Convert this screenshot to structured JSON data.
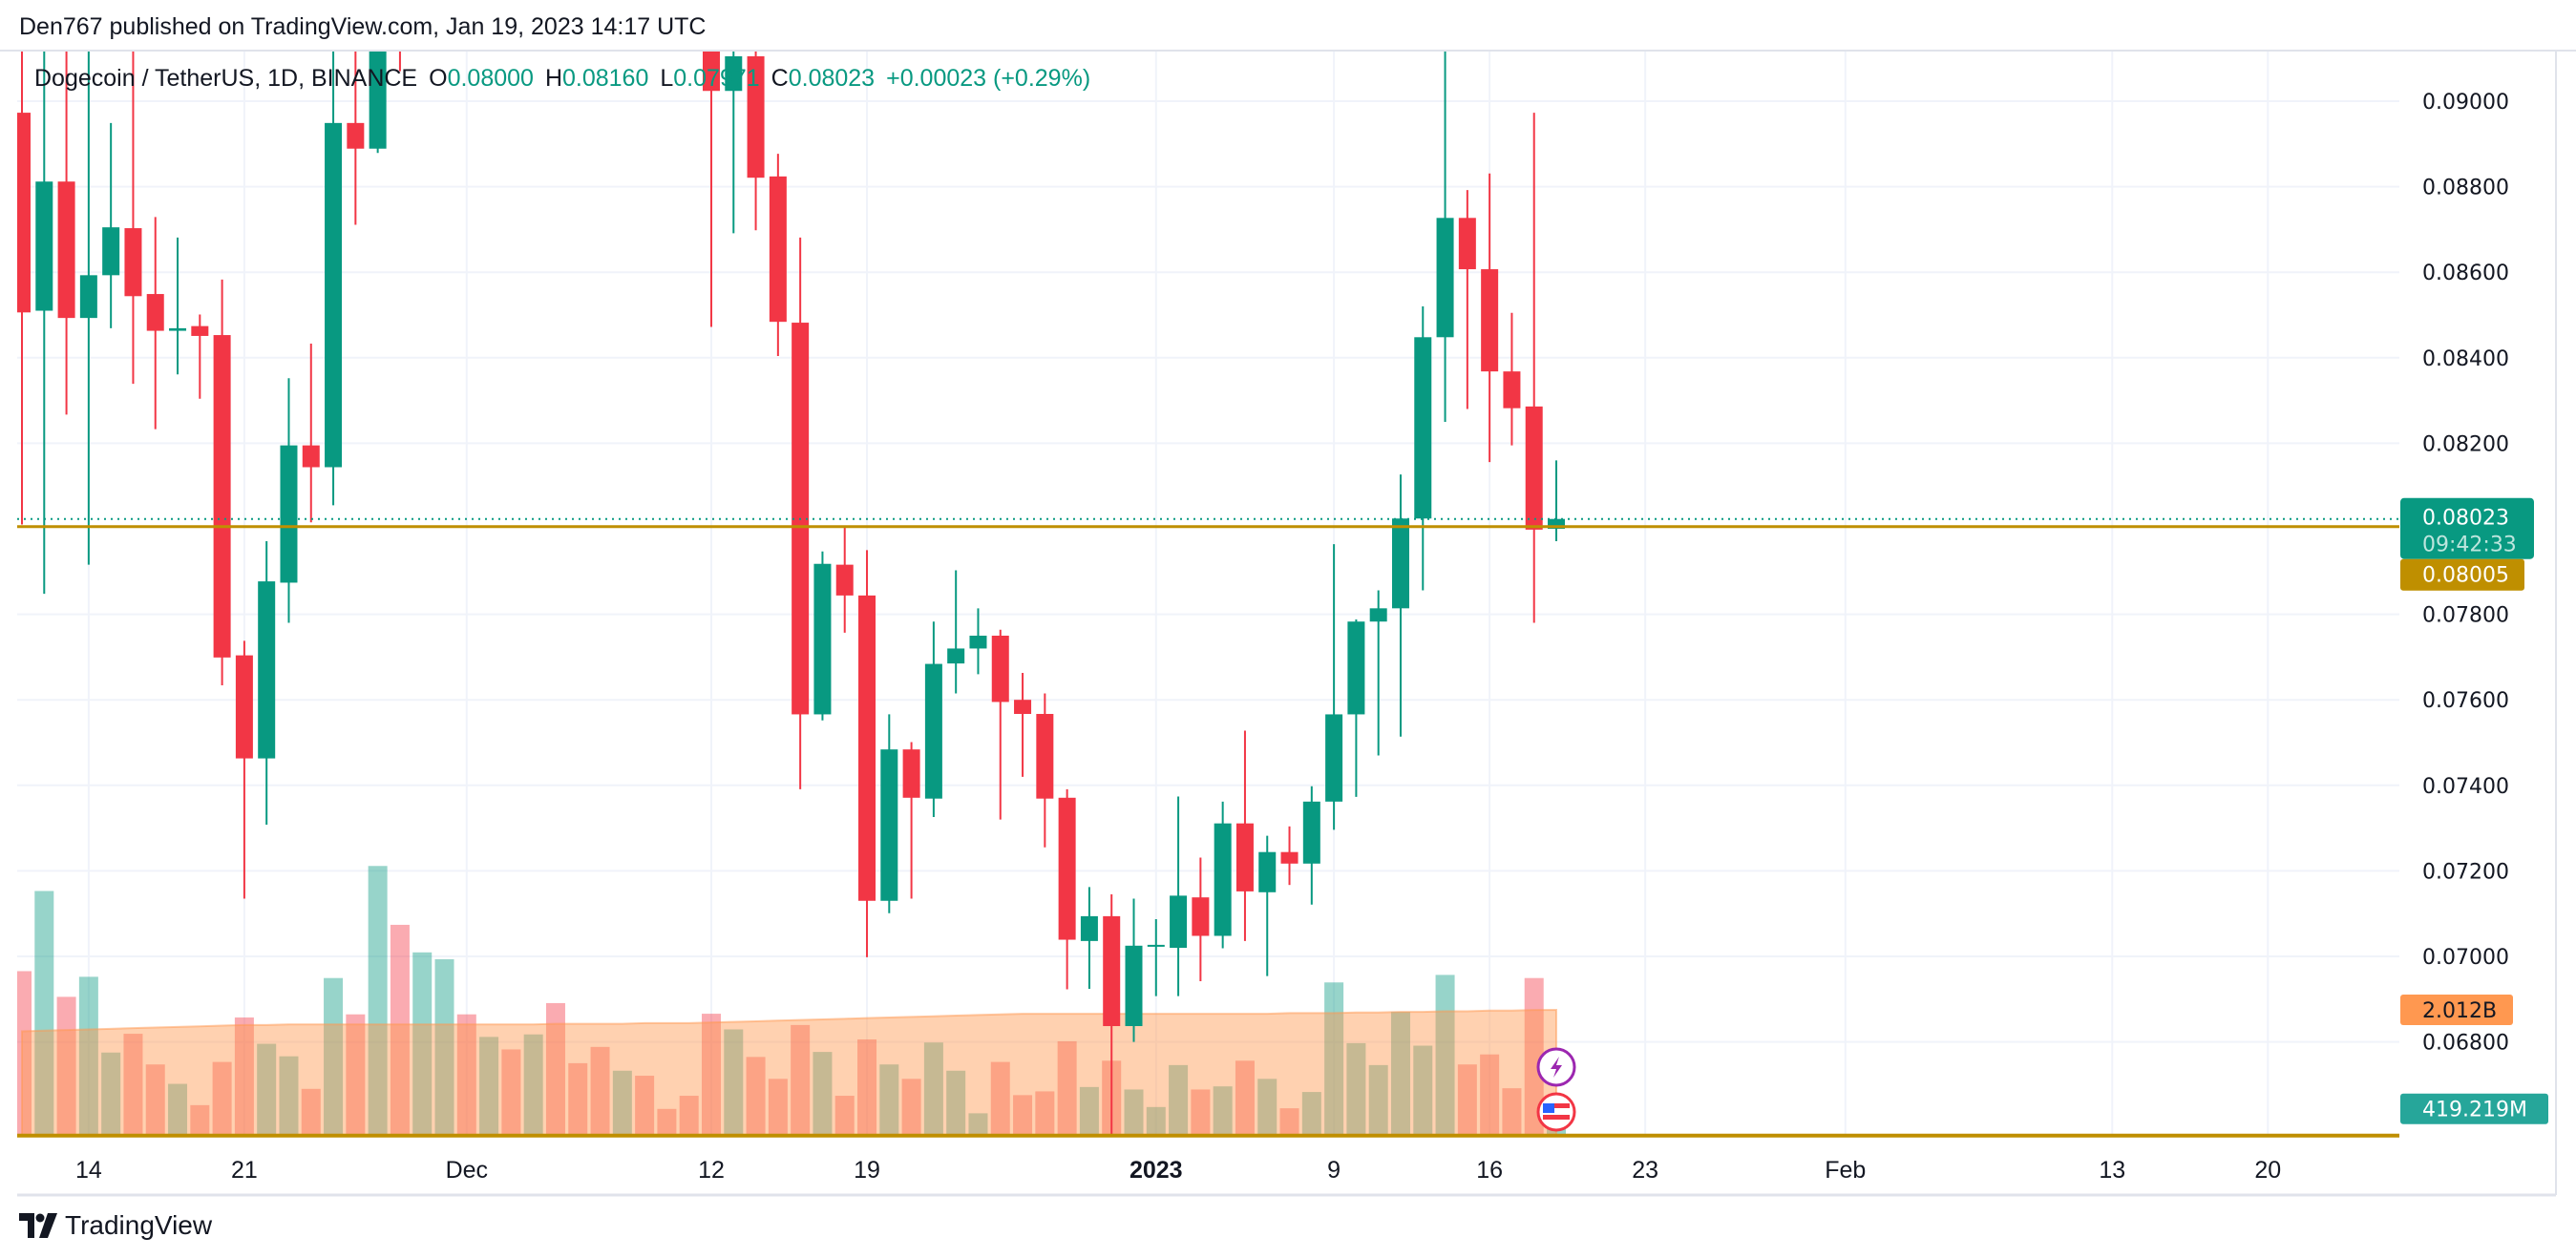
{
  "header": {
    "published": "Den767 published on TradingView.com, Jan 19, 2023 14:17 UTC"
  },
  "legend": {
    "symbol": "Dogecoin / TetherUS, 1D, BINANCE",
    "open_key": "O",
    "open": "0.08000",
    "high_key": "H",
    "high": "0.08160",
    "low_key": "L",
    "low": "0.07971",
    "close_key": "C",
    "close": "0.08023",
    "change": "+0.00023 (+0.29%)"
  },
  "price_axis": {
    "ticks": [
      "0.09000",
      "0.08800",
      "0.08600",
      "0.08400",
      "0.08200",
      "0.07800",
      "0.07600",
      "0.07400",
      "0.07200",
      "0.07000",
      "0.06800"
    ],
    "current_price": "0.08023",
    "countdown": "09:42:33",
    "line_price": "0.08005",
    "volume_ma_label": "2.012B",
    "volume_label": "419.219M",
    "bottom_line_price": "0.06581"
  },
  "time_axis": {
    "ticks": [
      {
        "label": "14",
        "date": "2022-11-14",
        "bold": false
      },
      {
        "label": "21",
        "date": "2022-11-21",
        "bold": false
      },
      {
        "label": "Dec",
        "date": "2022-12-01",
        "bold": false
      },
      {
        "label": "12",
        "date": "2022-12-12",
        "bold": false
      },
      {
        "label": "19",
        "date": "2022-12-19",
        "bold": false
      },
      {
        "label": "2023",
        "date": "2023-01-01",
        "bold": true
      },
      {
        "label": "9",
        "date": "2023-01-09",
        "bold": false
      },
      {
        "label": "16",
        "date": "2023-01-16",
        "bold": false
      },
      {
        "label": "23",
        "date": "2023-01-23",
        "bold": false
      },
      {
        "label": "Feb",
        "date": "2023-02-01",
        "bold": false
      },
      {
        "label": "13",
        "date": "2023-02-13",
        "bold": false
      },
      {
        "label": "20",
        "date": "2023-02-20",
        "bold": false
      }
    ]
  },
  "colors": {
    "up": "#089981",
    "down": "#F23645",
    "price_line": "#BF8F00",
    "volume_ma": "#FF9850",
    "grid": "#F0F3FA",
    "volume_label": "#26A69A"
  },
  "footer": {
    "brand": "TradingView"
  },
  "chart_data": {
    "type": "candlestick",
    "title": "Dogecoin / TetherUS, 1D, BINANCE",
    "ylim": [
      0.06581,
      0.0912
    ],
    "grid": true,
    "volume_unit": "B",
    "candles": [
      {
        "date": "2022-11-11",
        "open": 0.08973,
        "high": 0.0925,
        "low": 0.0801,
        "close": 0.08506,
        "volume": 2.63
      },
      {
        "date": "2022-11-12",
        "open": 0.0851,
        "high": 0.0925,
        "low": 0.07848,
        "close": 0.08812,
        "volume": 3.91
      },
      {
        "date": "2022-11-13",
        "open": 0.08812,
        "high": 0.093,
        "low": 0.08267,
        "close": 0.08493,
        "volume": 2.22
      },
      {
        "date": "2022-11-14",
        "open": 0.08493,
        "high": 0.0925,
        "low": 0.07916,
        "close": 0.08593,
        "volume": 2.54
      },
      {
        "date": "2022-11-15",
        "open": 0.08593,
        "high": 0.08949,
        "low": 0.08469,
        "close": 0.08705,
        "volume": 1.33
      },
      {
        "date": "2022-11-16",
        "open": 0.08703,
        "high": 0.0925,
        "low": 0.08339,
        "close": 0.08544,
        "volume": 1.63
      },
      {
        "date": "2022-11-17",
        "open": 0.08549,
        "high": 0.08729,
        "low": 0.08233,
        "close": 0.08463,
        "volume": 1.14
      },
      {
        "date": "2022-11-18",
        "open": 0.08463,
        "high": 0.08681,
        "low": 0.08361,
        "close": 0.08469,
        "volume": 0.83
      },
      {
        "date": "2022-11-19",
        "open": 0.08474,
        "high": 0.08501,
        "low": 0.08304,
        "close": 0.08451,
        "volume": 0.49
      },
      {
        "date": "2022-11-20",
        "open": 0.08453,
        "high": 0.08583,
        "low": 0.07634,
        "close": 0.07699,
        "volume": 1.18
      },
      {
        "date": "2022-11-21",
        "open": 0.07704,
        "high": 0.07738,
        "low": 0.07135,
        "close": 0.07463,
        "volume": 1.89
      },
      {
        "date": "2022-11-22",
        "open": 0.07463,
        "high": 0.07971,
        "low": 0.07308,
        "close": 0.07877,
        "volume": 1.47
      },
      {
        "date": "2022-11-23",
        "open": 0.07874,
        "high": 0.08352,
        "low": 0.0778,
        "close": 0.08195,
        "volume": 1.27
      },
      {
        "date": "2022-11-24",
        "open": 0.08195,
        "high": 0.08433,
        "low": 0.08015,
        "close": 0.08144,
        "volume": 0.75
      },
      {
        "date": "2022-11-25",
        "open": 0.08144,
        "high": 0.0925,
        "low": 0.08055,
        "close": 0.08949,
        "volume": 2.52
      },
      {
        "date": "2022-11-26",
        "open": 0.08949,
        "high": 0.093,
        "low": 0.08711,
        "close": 0.08889,
        "volume": 1.94
      },
      {
        "date": "2022-11-27",
        "open": 0.08889,
        "high": 0.094,
        "low": 0.08879,
        "close": 0.0935,
        "volume": 4.31
      },
      {
        "date": "2022-11-28",
        "open": 0.0935,
        "high": 0.094,
        "low": 0.0907,
        "close": 0.0915,
        "volume": 3.37
      },
      {
        "date": "2022-11-29",
        "open": null,
        "high": null,
        "low": null,
        "close": null,
        "volume": 2.93,
        "direction": "up"
      },
      {
        "date": "2022-11-30",
        "open": null,
        "high": null,
        "low": null,
        "close": null,
        "volume": 2.82,
        "direction": "up"
      },
      {
        "date": "2022-12-01",
        "open": null,
        "high": null,
        "low": null,
        "close": null,
        "volume": 1.94,
        "direction": "down"
      },
      {
        "date": "2022-12-02",
        "open": null,
        "high": null,
        "low": null,
        "close": null,
        "volume": 1.58,
        "direction": "up"
      },
      {
        "date": "2022-12-03",
        "open": null,
        "high": null,
        "low": null,
        "close": null,
        "volume": 1.38,
        "direction": "down"
      },
      {
        "date": "2022-12-04",
        "open": null,
        "high": null,
        "low": null,
        "close": null,
        "volume": 1.62,
        "direction": "up"
      },
      {
        "date": "2022-12-05",
        "open": null,
        "high": null,
        "low": null,
        "close": null,
        "volume": 2.12,
        "direction": "down"
      },
      {
        "date": "2022-12-06",
        "open": null,
        "high": null,
        "low": null,
        "close": null,
        "volume": 1.16,
        "direction": "down"
      },
      {
        "date": "2022-12-07",
        "open": null,
        "high": null,
        "low": null,
        "close": null,
        "volume": 1.42,
        "direction": "down"
      },
      {
        "date": "2022-12-08",
        "open": null,
        "high": null,
        "low": null,
        "close": null,
        "volume": 1.04,
        "direction": "up"
      },
      {
        "date": "2022-12-09",
        "open": null,
        "high": null,
        "low": null,
        "close": null,
        "volume": 0.96,
        "direction": "down"
      },
      {
        "date": "2022-12-10",
        "open": null,
        "high": null,
        "low": null,
        "close": null,
        "volume": 0.43,
        "direction": "down"
      },
      {
        "date": "2022-12-11",
        "open": null,
        "high": null,
        "low": null,
        "close": null,
        "volume": 0.64,
        "direction": "down"
      },
      {
        "date": "2022-12-12",
        "open": 0.093,
        "high": 0.0935,
        "low": 0.08472,
        "close": 0.09024,
        "volume": 1.95
      },
      {
        "date": "2022-12-13",
        "open": 0.09024,
        "high": 0.0925,
        "low": 0.08691,
        "close": 0.09105,
        "volume": 1.7
      },
      {
        "date": "2022-12-14",
        "open": 0.09105,
        "high": 0.0925,
        "low": 0.08698,
        "close": 0.08821,
        "volume": 1.26
      },
      {
        "date": "2022-12-15",
        "open": 0.08824,
        "high": 0.08877,
        "low": 0.08404,
        "close": 0.08484,
        "volume": 0.91
      },
      {
        "date": "2022-12-16",
        "open": 0.08482,
        "high": 0.08681,
        "low": 0.07391,
        "close": 0.07566,
        "volume": 1.77
      },
      {
        "date": "2022-12-17",
        "open": 0.07566,
        "high": 0.07947,
        "low": 0.07552,
        "close": 0.07918,
        "volume": 1.34
      },
      {
        "date": "2022-12-18",
        "open": 0.07916,
        "high": 0.08007,
        "low": 0.07757,
        "close": 0.07844,
        "volume": 0.64
      },
      {
        "date": "2022-12-19",
        "open": 0.07844,
        "high": 0.0795,
        "low": 0.06998,
        "close": 0.0713,
        "volume": 1.54
      },
      {
        "date": "2022-12-20",
        "open": 0.0713,
        "high": 0.07566,
        "low": 0.07101,
        "close": 0.07484,
        "volume": 1.14
      },
      {
        "date": "2022-12-21",
        "open": 0.07484,
        "high": 0.07501,
        "low": 0.07135,
        "close": 0.07371,
        "volume": 0.91
      },
      {
        "date": "2022-12-22",
        "open": 0.07369,
        "high": 0.07783,
        "low": 0.07326,
        "close": 0.07684,
        "volume": 1.49
      },
      {
        "date": "2022-12-23",
        "open": 0.07685,
        "high": 0.07903,
        "low": 0.07615,
        "close": 0.0772,
        "volume": 1.04
      },
      {
        "date": "2022-12-24",
        "open": 0.0772,
        "high": 0.07814,
        "low": 0.0766,
        "close": 0.0775,
        "volume": 0.36
      },
      {
        "date": "2022-12-25",
        "open": 0.0775,
        "high": 0.07764,
        "low": 0.0732,
        "close": 0.07595,
        "volume": 1.18
      },
      {
        "date": "2022-12-26",
        "open": 0.076,
        "high": 0.07663,
        "low": 0.0742,
        "close": 0.07567,
        "volume": 0.65
      },
      {
        "date": "2022-12-27",
        "open": 0.07567,
        "high": 0.07615,
        "low": 0.07255,
        "close": 0.07369,
        "volume": 0.71
      },
      {
        "date": "2022-12-28",
        "open": 0.07371,
        "high": 0.07391,
        "low": 0.06923,
        "close": 0.07039,
        "volume": 1.51
      },
      {
        "date": "2022-12-29",
        "open": 0.07036,
        "high": 0.07162,
        "low": 0.06924,
        "close": 0.07094,
        "volume": 0.78
      },
      {
        "date": "2022-12-30",
        "open": 0.07094,
        "high": 0.07145,
        "low": 0.06582,
        "close": 0.06837,
        "volume": 1.2
      },
      {
        "date": "2022-12-31",
        "open": 0.06837,
        "high": 0.07135,
        "low": 0.068,
        "close": 0.07025,
        "volume": 0.74
      },
      {
        "date": "2023-01-01",
        "open": 0.07025,
        "high": 0.07087,
        "low": 0.06907,
        "close": 0.07027,
        "volume": 0.46
      },
      {
        "date": "2023-01-02",
        "open": 0.0702,
        "high": 0.07374,
        "low": 0.06907,
        "close": 0.07142,
        "volume": 1.13
      },
      {
        "date": "2023-01-03",
        "open": 0.07138,
        "high": 0.07231,
        "low": 0.06942,
        "close": 0.07048,
        "volume": 0.74
      },
      {
        "date": "2023-01-04",
        "open": 0.07048,
        "high": 0.07362,
        "low": 0.07019,
        "close": 0.07311,
        "volume": 0.79
      },
      {
        "date": "2023-01-05",
        "open": 0.07311,
        "high": 0.07528,
        "low": 0.07036,
        "close": 0.07152,
        "volume": 1.2
      },
      {
        "date": "2023-01-06",
        "open": 0.0715,
        "high": 0.07282,
        "low": 0.06954,
        "close": 0.07244,
        "volume": 0.91
      },
      {
        "date": "2023-01-07",
        "open": 0.07244,
        "high": 0.07304,
        "low": 0.07167,
        "close": 0.07217,
        "volume": 0.44
      },
      {
        "date": "2023-01-08",
        "open": 0.07217,
        "high": 0.07398,
        "low": 0.07121,
        "close": 0.07362,
        "volume": 0.7
      },
      {
        "date": "2023-01-09",
        "open": 0.07362,
        "high": 0.07964,
        "low": 0.07296,
        "close": 0.07566,
        "volume": 2.45
      },
      {
        "date": "2023-01-10",
        "open": 0.07566,
        "high": 0.07788,
        "low": 0.07373,
        "close": 0.07783,
        "volume": 1.48
      },
      {
        "date": "2023-01-11",
        "open": 0.07783,
        "high": 0.07856,
        "low": 0.0747,
        "close": 0.07814,
        "volume": 1.13
      },
      {
        "date": "2023-01-12",
        "open": 0.07814,
        "high": 0.08127,
        "low": 0.07514,
        "close": 0.08024,
        "volume": 1.98
      },
      {
        "date": "2023-01-13",
        "open": 0.08024,
        "high": 0.0852,
        "low": 0.07856,
        "close": 0.08448,
        "volume": 1.44
      },
      {
        "date": "2023-01-14",
        "open": 0.08448,
        "high": 0.0915,
        "low": 0.0825,
        "close": 0.08727,
        "volume": 2.57
      },
      {
        "date": "2023-01-15",
        "open": 0.08727,
        "high": 0.08792,
        "low": 0.0828,
        "close": 0.08607,
        "volume": 1.14
      },
      {
        "date": "2023-01-16",
        "open": 0.08607,
        "high": 0.08831,
        "low": 0.08156,
        "close": 0.08368,
        "volume": 1.3
      },
      {
        "date": "2023-01-17",
        "open": 0.08368,
        "high": 0.08505,
        "low": 0.08195,
        "close": 0.08282,
        "volume": 0.76
      },
      {
        "date": "2023-01-18",
        "open": 0.08286,
        "high": 0.08973,
        "low": 0.0778,
        "close": 0.07998,
        "volume": 2.52
      },
      {
        "date": "2023-01-19",
        "open": 0.08,
        "high": 0.0816,
        "low": 0.07971,
        "close": 0.08023,
        "volume": 0.419
      }
    ],
    "volume_ma": [
      1.67,
      1.68,
      1.69,
      1.7,
      1.71,
      1.72,
      1.73,
      1.74,
      1.75,
      1.76,
      1.77,
      1.77,
      1.78,
      1.78,
      1.78,
      1.78,
      1.78,
      1.78,
      1.78,
      1.78,
      1.78,
      1.78,
      1.78,
      1.78,
      1.79,
      1.79,
      1.79,
      1.79,
      1.8,
      1.8,
      1.8,
      1.81,
      1.82,
      1.83,
      1.84,
      1.85,
      1.86,
      1.87,
      1.88,
      1.89,
      1.9,
      1.91,
      1.92,
      1.93,
      1.94,
      1.95,
      1.95,
      1.95,
      1.95,
      1.95,
      1.95,
      1.95,
      1.95,
      1.95,
      1.95,
      1.95,
      1.95,
      1.96,
      1.96,
      1.96,
      1.97,
      1.97,
      1.98,
      1.98,
      1.99,
      1.99,
      2.0,
      2.0,
      2.01,
      2.012
    ]
  }
}
